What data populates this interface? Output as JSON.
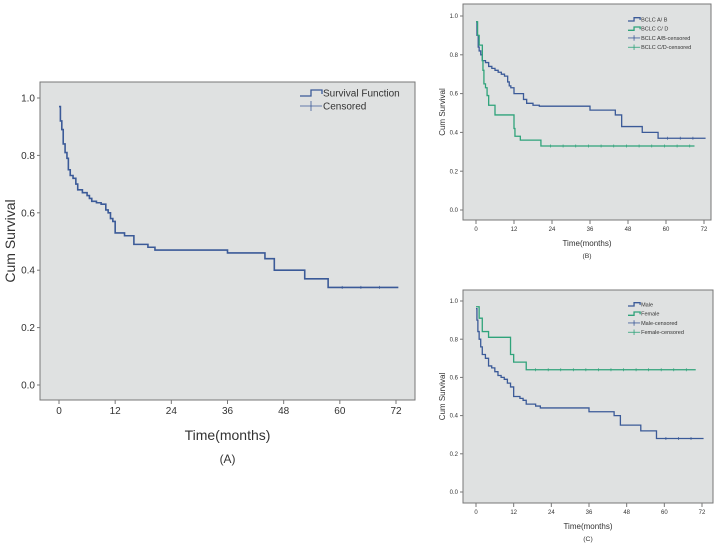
{
  "colors": {
    "blue": "#3b5a98",
    "green": "#2fa37a",
    "plot_bg": "#dfe1e1",
    "frame": "#777777"
  },
  "chart_data": [
    {
      "type": "line",
      "step": true,
      "panel_label": "(A)",
      "xlabel": "Time(months)",
      "ylabel": "Cum Survival",
      "xlim": [
        0,
        72
      ],
      "ylim": [
        0,
        1
      ],
      "xticks": [
        0,
        12,
        24,
        36,
        48,
        60,
        72
      ],
      "yticks": [
        "0.0",
        "0.2",
        "0.4",
        "0.6",
        "0.8",
        "1.0"
      ],
      "grid": false,
      "legend_position": "top-right",
      "legend": [
        "Survival Function",
        "Censored"
      ],
      "series": [
        {
          "name": "Survival Function",
          "color": "#3b5a98",
          "end": 72.5,
          "points": [
            [
              0,
              0.97
            ],
            [
              0.3,
              0.92
            ],
            [
              0.6,
              0.89
            ],
            [
              0.9,
              0.84
            ],
            [
              1.3,
              0.81
            ],
            [
              1.7,
              0.79
            ],
            [
              2,
              0.75
            ],
            [
              2.4,
              0.73
            ],
            [
              3,
              0.72
            ],
            [
              3.6,
              0.7
            ],
            [
              4,
              0.68
            ],
            [
              5,
              0.67
            ],
            [
              6,
              0.66
            ],
            [
              6.5,
              0.65
            ],
            [
              7,
              0.64
            ],
            [
              8,
              0.635
            ],
            [
              9,
              0.63
            ],
            [
              10,
              0.61
            ],
            [
              10.5,
              0.6
            ],
            [
              11,
              0.58
            ],
            [
              11.5,
              0.57
            ],
            [
              12,
              0.53
            ],
            [
              14,
              0.52
            ],
            [
              16,
              0.49
            ],
            [
              19,
              0.48
            ],
            [
              20.5,
              0.47
            ],
            [
              36,
              0.46
            ],
            [
              44,
              0.44
            ],
            [
              46,
              0.4
            ],
            [
              52.5,
              0.37
            ],
            [
              57.5,
              0.34
            ]
          ]
        }
      ]
    },
    {
      "type": "line",
      "step": true,
      "panel_label": "(B)",
      "xlabel": "Time(months)",
      "ylabel": "Cum Survival",
      "xlim": [
        0,
        72
      ],
      "ylim": [
        0,
        1
      ],
      "xticks": [
        0,
        12,
        24,
        36,
        48,
        60,
        72
      ],
      "yticks": [
        "0.0",
        "0.2",
        "0.4",
        "0.6",
        "0.8",
        "1.0"
      ],
      "grid": false,
      "legend_position": "top-right",
      "legend": [
        "BCLC A/  B",
        "BCLC C/  D",
        "BCLC A/B-censored",
        "BCLC C/D-censored"
      ],
      "series": [
        {
          "name": "BCLC A/  B",
          "color": "#3b5a98",
          "end": 72.5,
          "points": [
            [
              0,
              0.97
            ],
            [
              0.3,
              0.9
            ],
            [
              0.7,
              0.84
            ],
            [
              1,
              0.82
            ],
            [
              1.5,
              0.8
            ],
            [
              2,
              0.77
            ],
            [
              3,
              0.76
            ],
            [
              4,
              0.74
            ],
            [
              5,
              0.73
            ],
            [
              6,
              0.72
            ],
            [
              7,
              0.71
            ],
            [
              8,
              0.7
            ],
            [
              9,
              0.69
            ],
            [
              10,
              0.66
            ],
            [
              10.5,
              0.64
            ],
            [
              11,
              0.63
            ],
            [
              12,
              0.6
            ],
            [
              15,
              0.57
            ],
            [
              16,
              0.55
            ],
            [
              18,
              0.54
            ],
            [
              20,
              0.535
            ],
            [
              36,
              0.515
            ],
            [
              44,
              0.49
            ],
            [
              46,
              0.43
            ],
            [
              52.5,
              0.4
            ],
            [
              57.5,
              0.37
            ]
          ]
        },
        {
          "name": "BCLC C/  D",
          "color": "#2fa37a",
          "end": 69,
          "points": [
            [
              0,
              0.97
            ],
            [
              0.5,
              0.9
            ],
            [
              1,
              0.85
            ],
            [
              2,
              0.77
            ],
            [
              2.2,
              0.72
            ],
            [
              2.5,
              0.65
            ],
            [
              3,
              0.63
            ],
            [
              3.5,
              0.59
            ],
            [
              4,
              0.54
            ],
            [
              6,
              0.49
            ],
            [
              12,
              0.42
            ],
            [
              12.3,
              0.38
            ],
            [
              14,
              0.36
            ],
            [
              20.5,
              0.33
            ]
          ]
        }
      ]
    },
    {
      "type": "line",
      "step": true,
      "panel_label": "(C)",
      "xlabel": "Time(months)",
      "ylabel": "Cum Survival",
      "xlim": [
        0,
        72
      ],
      "ylim": [
        0,
        1
      ],
      "xticks": [
        0,
        12,
        24,
        36,
        48,
        60,
        72
      ],
      "yticks": [
        "0.0",
        "0.2",
        "0.4",
        "0.6",
        "0.8",
        "1.0"
      ],
      "grid": false,
      "legend_position": "top-right",
      "legend": [
        "Male",
        "Female",
        "Male-censored",
        "Female-censored"
      ],
      "series": [
        {
          "name": "Male",
          "color": "#3b5a98",
          "end": 72.5,
          "points": [
            [
              0,
              0.96
            ],
            [
              0.3,
              0.9
            ],
            [
              0.6,
              0.84
            ],
            [
              1,
              0.8
            ],
            [
              1.5,
              0.76
            ],
            [
              2,
              0.72
            ],
            [
              3,
              0.7
            ],
            [
              4,
              0.66
            ],
            [
              5,
              0.65
            ],
            [
              6,
              0.63
            ],
            [
              7,
              0.61
            ],
            [
              8,
              0.6
            ],
            [
              9,
              0.59
            ],
            [
              10,
              0.57
            ],
            [
              11,
              0.55
            ],
            [
              12,
              0.5
            ],
            [
              14,
              0.49
            ],
            [
              15,
              0.48
            ],
            [
              16,
              0.46
            ],
            [
              19,
              0.45
            ],
            [
              20.5,
              0.44
            ],
            [
              36,
              0.42
            ],
            [
              44,
              0.4
            ],
            [
              46,
              0.35
            ],
            [
              52.5,
              0.32
            ],
            [
              57.5,
              0.28
            ]
          ]
        },
        {
          "name": "Female",
          "color": "#2fa37a",
          "end": 70,
          "points": [
            [
              0,
              0.97
            ],
            [
              1,
              0.91
            ],
            [
              2,
              0.84
            ],
            [
              4,
              0.81
            ],
            [
              11,
              0.72
            ],
            [
              12,
              0.68
            ],
            [
              16,
              0.64
            ]
          ]
        }
      ]
    }
  ]
}
